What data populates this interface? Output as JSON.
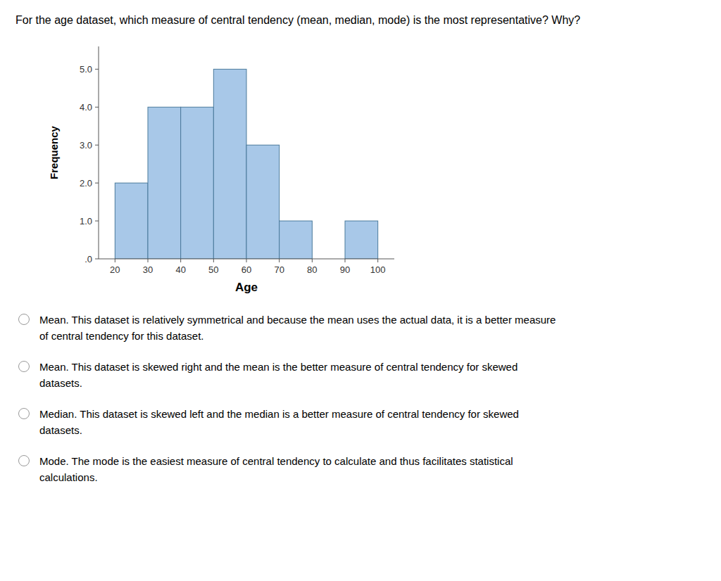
{
  "chart_data": {
    "type": "histogram",
    "title": "For the age dataset, which measure of central tendency (mean, median, mode) is the most representative? Why?",
    "bins": [
      20,
      30,
      40,
      50,
      60,
      70,
      80,
      90,
      100
    ],
    "values": [
      2,
      4,
      4,
      5,
      3,
      1,
      0,
      1
    ],
    "color": "#a8c8e8",
    "xlabel": "Age",
    "ylabel": "Frequency",
    "xlim": [
      15,
      105
    ],
    "ylim": [
      0,
      5.6
    ],
    "xticks": [
      20,
      30,
      40,
      50,
      60,
      70,
      80,
      90,
      100
    ],
    "yticks": [
      {
        "value": 0.0,
        "label": ".0"
      },
      {
        "value": 1.0,
        "label": "1.0"
      },
      {
        "value": 2.0,
        "label": "2.0"
      },
      {
        "value": 3.0,
        "label": "3.0"
      },
      {
        "value": 4.0,
        "label": "4.0"
      },
      {
        "value": 5.0,
        "label": "5.0"
      }
    ],
    "grid": false,
    "annotations": [
      "Mean. This dataset is relatively symmetrical and because the mean uses the actual data, it is a better measure\nof central tendency for this dataset.",
      "Mean. This dataset is skewed right and the mean is the better measure of central tendency for skewed\ndatasets.",
      "Median. This dataset is skewed left and the median is a better measure of central tendency for skewed\ndatasets.",
      "Mode. The mode is the easiest measure of central tendency to calculate and thus facilitates statistical\ncalculations."
    ]
  }
}
